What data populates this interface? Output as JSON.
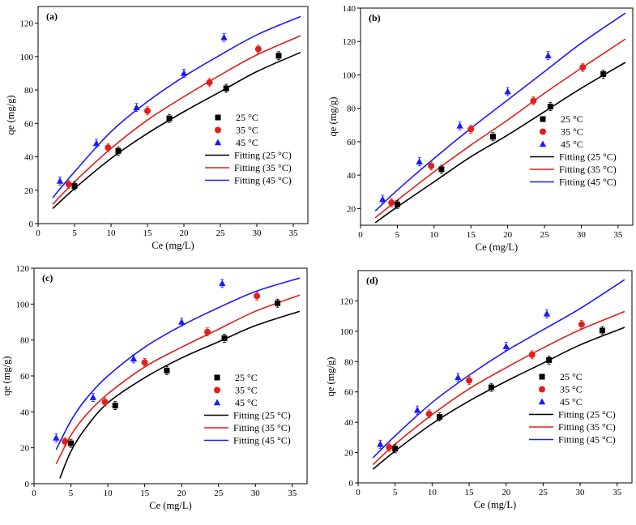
{
  "chart_data": [
    {
      "type": "scatter",
      "panel_label": "(a)",
      "xlabel": "Ce (mg/L)",
      "ylabel": "qe (mg/g)",
      "xlim": [
        0,
        37
      ],
      "ylim": [
        0,
        130
      ],
      "xticks": [
        "0",
        "5",
        "10",
        "15",
        "20",
        "25",
        "30",
        "35"
      ],
      "yticks": [
        "0",
        "20",
        "40",
        "60",
        "80",
        "100",
        "120"
      ],
      "legend_position": "lower-right",
      "series": [
        {
          "name": "25 °C",
          "marker": "square",
          "color": "#000000",
          "points": [
            [
              5.0,
              22.5
            ],
            [
              11.0,
              43.5
            ],
            [
              18.0,
              63.0
            ],
            [
              25.8,
              81.0
            ],
            [
              33.0,
              100.5
            ]
          ]
        },
        {
          "name": "35 °C",
          "marker": "circle",
          "color": "#e0201b",
          "points": [
            [
              4.2,
              23.5
            ],
            [
              9.6,
              45.5
            ],
            [
              15.0,
              67.5
            ],
            [
              23.5,
              84.5
            ],
            [
              30.2,
              104.5
            ]
          ]
        },
        {
          "name": "45 °C",
          "marker": "triangle",
          "color": "#1a1aff",
          "points": [
            [
              3.0,
              25.5
            ],
            [
              8.0,
              48.0
            ],
            [
              13.5,
              69.5
            ],
            [
              20.0,
              90.0
            ],
            [
              25.5,
              111.5
            ]
          ]
        }
      ],
      "fits": [
        {
          "name": "Fitting (25 °C)",
          "color": "#000000",
          "points": [
            [
              2.0,
              9.0
            ],
            [
              5.0,
              21.0
            ],
            [
              10.0,
              39.0
            ],
            [
              15.0,
              54.0
            ],
            [
              20.0,
              67.0
            ],
            [
              25.0,
              79.0
            ],
            [
              30.0,
              91.0
            ],
            [
              36.0,
              102.5
            ]
          ]
        },
        {
          "name": "Fitting (35 °C)",
          "color": "#e0201b",
          "points": [
            [
              2.0,
              11.5
            ],
            [
              5.0,
              25.0
            ],
            [
              10.0,
              45.0
            ],
            [
              15.0,
              62.0
            ],
            [
              20.0,
              76.0
            ],
            [
              25.0,
              89.0
            ],
            [
              30.0,
              101.0
            ],
            [
              36.0,
              112.5
            ]
          ]
        },
        {
          "name": "Fitting (45 °C)",
          "color": "#1a1aff",
          "points": [
            [
              2.0,
              15.5
            ],
            [
              5.0,
              31.0
            ],
            [
              10.0,
              55.0
            ],
            [
              15.0,
              73.0
            ],
            [
              20.0,
              88.0
            ],
            [
              25.0,
              101.0
            ],
            [
              30.0,
              113.0
            ],
            [
              36.0,
              124.0
            ]
          ]
        }
      ]
    },
    {
      "type": "scatter",
      "panel_label": "(b)",
      "xlabel": "Ce (mg/L)",
      "ylabel": "qe (mg/g)",
      "xlim": [
        0,
        37
      ],
      "ylim": [
        10,
        140
      ],
      "xticks": [
        "0",
        "5",
        "10",
        "15",
        "20",
        "25",
        "30",
        "35"
      ],
      "yticks": [
        "20",
        "40",
        "60",
        "80",
        "100",
        "120",
        "140"
      ],
      "legend_position": "lower-right",
      "series": [
        {
          "name": "25 °C",
          "marker": "square",
          "color": "#000000",
          "points": [
            [
              5.0,
              22.5
            ],
            [
              11.0,
              43.5
            ],
            [
              18.0,
              63.0
            ],
            [
              25.8,
              81.0
            ],
            [
              33.0,
              100.5
            ]
          ]
        },
        {
          "name": "35 °C",
          "marker": "circle",
          "color": "#e0201b",
          "points": [
            [
              4.2,
              23.5
            ],
            [
              9.6,
              45.5
            ],
            [
              15.0,
              67.5
            ],
            [
              23.5,
              84.5
            ],
            [
              30.2,
              104.5
            ]
          ]
        },
        {
          "name": "45 °C",
          "marker": "triangle",
          "color": "#1a1aff",
          "points": [
            [
              3.0,
              25.5
            ],
            [
              8.0,
              48.0
            ],
            [
              13.5,
              69.5
            ],
            [
              20.0,
              90.0
            ],
            [
              25.5,
              111.5
            ]
          ]
        }
      ],
      "fits": [
        {
          "name": "Fitting (25 °C)",
          "color": "#000000",
          "points": [
            [
              2.0,
              11.5
            ],
            [
              5.0,
              21.0
            ],
            [
              10.0,
              36.0
            ],
            [
              15.0,
              51.0
            ],
            [
              20.0,
              64.0
            ],
            [
              25.0,
              78.0
            ],
            [
              30.0,
              92.0
            ],
            [
              36.0,
              107.5
            ]
          ]
        },
        {
          "name": "Fitting (35 °C)",
          "color": "#e0201b",
          "points": [
            [
              2.0,
              14.5
            ],
            [
              5.0,
              25.0
            ],
            [
              10.0,
              42.0
            ],
            [
              15.0,
              58.0
            ],
            [
              20.0,
              73.0
            ],
            [
              25.0,
              89.0
            ],
            [
              30.0,
              104.0
            ],
            [
              36.0,
              121.5
            ]
          ]
        },
        {
          "name": "Fitting (45 °C)",
          "color": "#1a1aff",
          "points": [
            [
              2.0,
              18.5
            ],
            [
              5.0,
              31.0
            ],
            [
              10.0,
              50.0
            ],
            [
              15.0,
              68.0
            ],
            [
              20.0,
              85.0
            ],
            [
              25.0,
              102.0
            ],
            [
              30.0,
              119.0
            ],
            [
              36.0,
              137.0
            ]
          ]
        }
      ]
    },
    {
      "type": "scatter",
      "panel_label": "(c)",
      "xlabel": "Ce (mg/L)",
      "ylabel": "qe (mg/g)",
      "xlim": [
        0,
        37
      ],
      "ylim": [
        0,
        120
      ],
      "xticks": [
        "0",
        "5",
        "10",
        "15",
        "20",
        "25",
        "30",
        "35"
      ],
      "yticks": [
        "0",
        "20",
        "40",
        "60",
        "80",
        "100",
        "120"
      ],
      "legend_position": "lower-right",
      "series": [
        {
          "name": "25 °C",
          "marker": "square",
          "color": "#000000",
          "points": [
            [
              5.0,
              22.5
            ],
            [
              11.0,
              43.5
            ],
            [
              18.0,
              63.0
            ],
            [
              25.8,
              81.0
            ],
            [
              33.0,
              100.5
            ]
          ]
        },
        {
          "name": "35 °C",
          "marker": "circle",
          "color": "#e0201b",
          "points": [
            [
              4.2,
              23.5
            ],
            [
              9.6,
              45.5
            ],
            [
              15.0,
              67.5
            ],
            [
              23.5,
              84.5
            ],
            [
              30.2,
              104.5
            ]
          ]
        },
        {
          "name": "45 °C",
          "marker": "triangle",
          "color": "#1a1aff",
          "points": [
            [
              3.0,
              25.5
            ],
            [
              8.0,
              48.0
            ],
            [
              13.5,
              69.5
            ],
            [
              20.0,
              90.0
            ],
            [
              25.5,
              111.5
            ]
          ]
        }
      ],
      "fits": [
        {
          "name": "Fitting (25 °C)",
          "color": "#000000",
          "points": [
            [
              3.5,
              3.0
            ],
            [
              5.0,
              18.0
            ],
            [
              7.0,
              31.0
            ],
            [
              10.0,
              45.0
            ],
            [
              15.0,
              59.0
            ],
            [
              20.0,
              70.0
            ],
            [
              25.0,
              79.0
            ],
            [
              30.0,
              88.0
            ],
            [
              36.0,
              96.0
            ]
          ]
        },
        {
          "name": "Fitting (35 °C)",
          "color": "#e0201b",
          "points": [
            [
              3.0,
              11.0
            ],
            [
              5.0,
              27.0
            ],
            [
              7.0,
              38.0
            ],
            [
              10.0,
              50.0
            ],
            [
              15.0,
              65.0
            ],
            [
              20.0,
              76.0
            ],
            [
              25.0,
              86.0
            ],
            [
              30.0,
              96.0
            ],
            [
              36.0,
              105.0
            ]
          ]
        },
        {
          "name": "Fitting (45 °C)",
          "color": "#1a1aff",
          "points": [
            [
              3.0,
              19.0
            ],
            [
              5.0,
              35.0
            ],
            [
              7.0,
              47.0
            ],
            [
              10.0,
              60.0
            ],
            [
              15.0,
              76.0
            ],
            [
              20.0,
              88.0
            ],
            [
              25.0,
              98.0
            ],
            [
              30.0,
              107.0
            ],
            [
              36.0,
              114.5
            ]
          ]
        }
      ]
    },
    {
      "type": "scatter",
      "panel_label": "(d)",
      "xlabel": "Ce (mg/L)",
      "ylabel": "qe (mg/g)",
      "xlim": [
        0,
        37
      ],
      "ylim": [
        0,
        140
      ],
      "xticks": [
        "0",
        "5",
        "10",
        "15",
        "20",
        "25",
        "30",
        "35"
      ],
      "yticks": [
        "0",
        "20",
        "40",
        "60",
        "80",
        "100",
        "120"
      ],
      "legend_position": "lower-right",
      "series": [
        {
          "name": "25 °C",
          "marker": "square",
          "color": "#000000",
          "points": [
            [
              5.0,
              22.5
            ],
            [
              11.0,
              43.5
            ],
            [
              18.0,
              63.0
            ],
            [
              25.8,
              81.0
            ],
            [
              33.0,
              100.5
            ]
          ]
        },
        {
          "name": "35 °C",
          "marker": "circle",
          "color": "#e0201b",
          "points": [
            [
              4.2,
              23.5
            ],
            [
              9.6,
              45.5
            ],
            [
              15.0,
              67.5
            ],
            [
              23.5,
              84.5
            ],
            [
              30.2,
              104.5
            ]
          ]
        },
        {
          "name": "45 °C",
          "marker": "triangle",
          "color": "#1a1aff",
          "points": [
            [
              3.0,
              25.5
            ],
            [
              8.0,
              48.0
            ],
            [
              13.5,
              69.5
            ],
            [
              20.0,
              90.0
            ],
            [
              25.5,
              111.5
            ]
          ]
        }
      ],
      "fits": [
        {
          "name": "Fitting (25 °C)",
          "color": "#000000",
          "points": [
            [
              2.0,
              9.0
            ],
            [
              5.0,
              21.0
            ],
            [
              10.0,
              39.0
            ],
            [
              15.0,
              54.0
            ],
            [
              20.0,
              67.0
            ],
            [
              25.0,
              79.0
            ],
            [
              30.0,
              91.0
            ],
            [
              36.0,
              102.5
            ]
          ]
        },
        {
          "name": "Fitting (35 °C)",
          "color": "#e0201b",
          "points": [
            [
              2.0,
              12.0
            ],
            [
              5.0,
              25.5
            ],
            [
              10.0,
              45.0
            ],
            [
              15.0,
              62.0
            ],
            [
              20.0,
              76.0
            ],
            [
              25.0,
              89.0
            ],
            [
              30.0,
              101.0
            ],
            [
              36.0,
              113.0
            ]
          ]
        },
        {
          "name": "Fitting (45 °C)",
          "color": "#1a1aff",
          "points": [
            [
              2.0,
              16.5
            ],
            [
              5.0,
              31.0
            ],
            [
              10.0,
              53.0
            ],
            [
              15.0,
              71.0
            ],
            [
              20.0,
              87.0
            ],
            [
              25.0,
              101.0
            ],
            [
              30.0,
              115.0
            ],
            [
              36.0,
              134.0
            ]
          ]
        }
      ]
    }
  ]
}
